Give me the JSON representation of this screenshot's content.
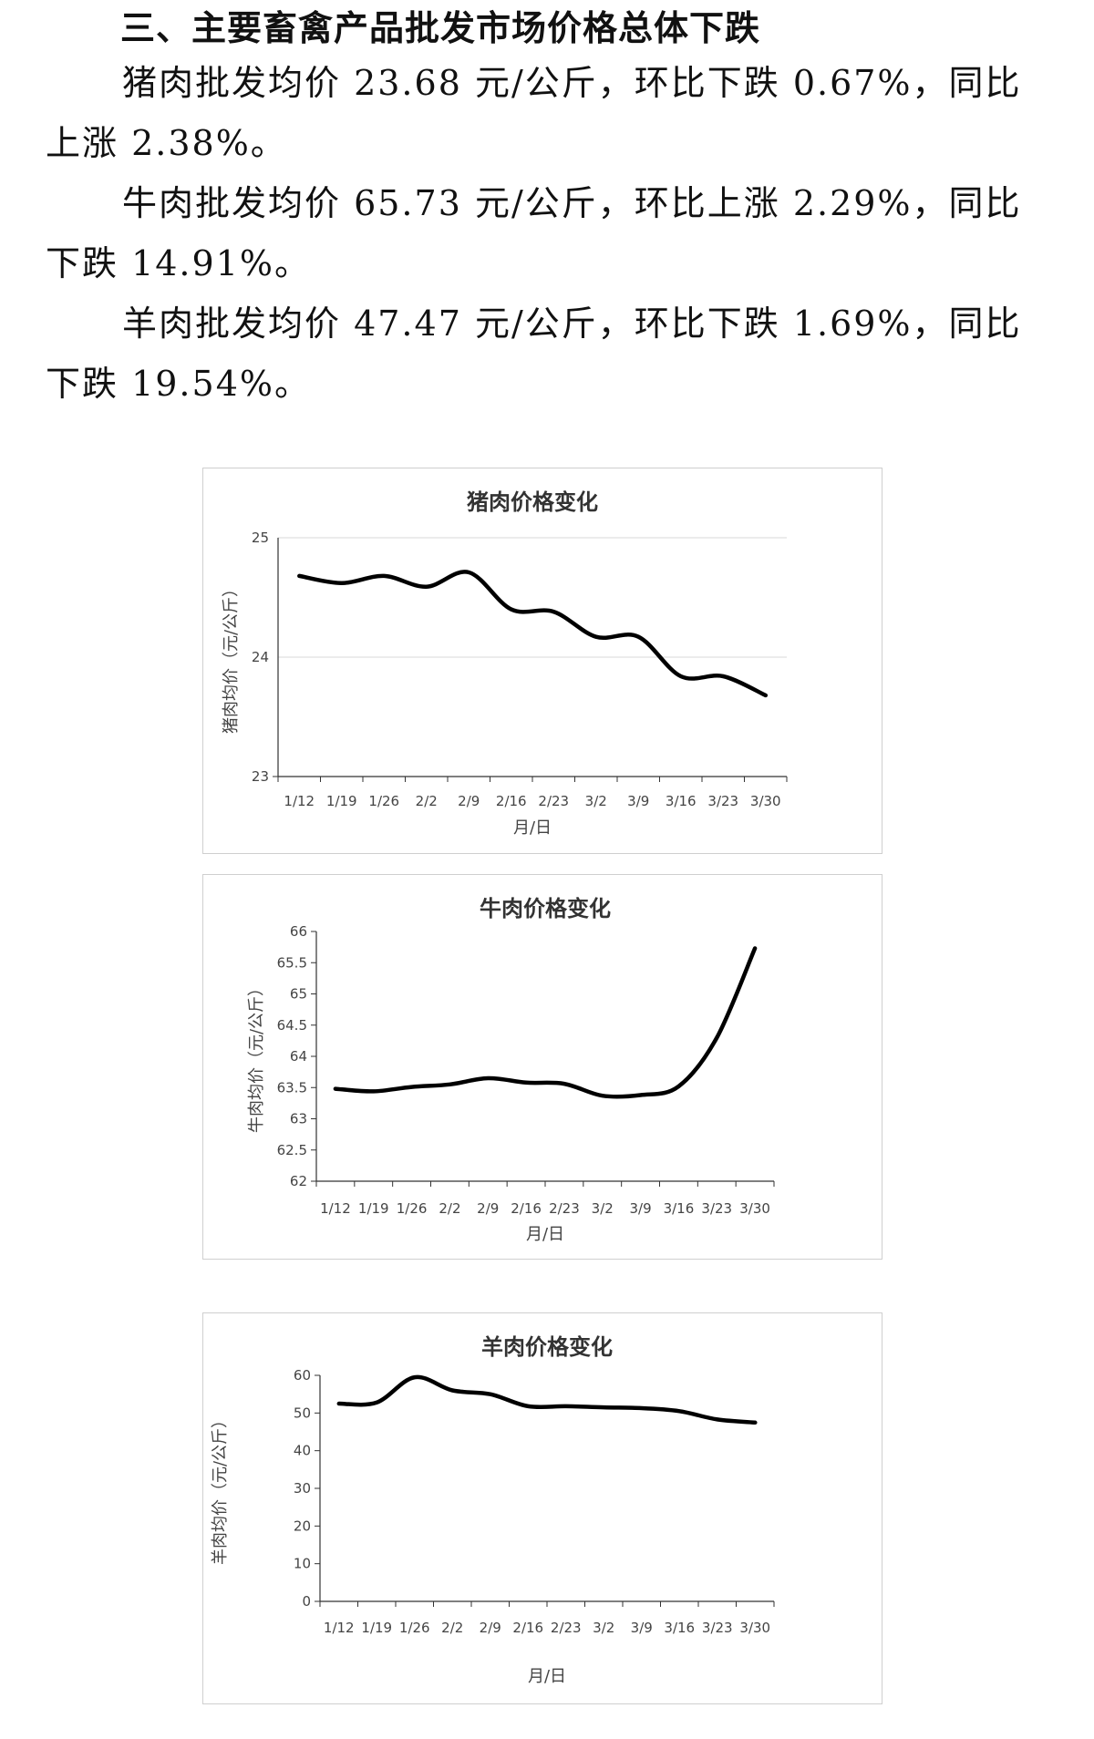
{
  "heading": "三、主要畜禽产品批发市场价格总体下跌",
  "paragraphs": [
    "猪肉批发均价 23.68 元/公斤，环比下跌 0.67%，同比上涨 2.38%。",
    "牛肉批发均价 65.73 元/公斤，环比上涨 2.29%，同比下跌 14.91%。",
    "羊肉批发均价 47.47 元/公斤，环比下跌 1.69%，同比下跌 19.54%。"
  ],
  "chart_data": [
    {
      "type": "line",
      "title": "猪肉价格变化",
      "xlabel": "月/日",
      "ylabel": "猪肉均价（元/公斤）",
      "categories": [
        "1/12",
        "1/19",
        "1/26",
        "2/2",
        "2/9",
        "2/16",
        "2/23",
        "3/2",
        "3/9",
        "3/16",
        "3/23",
        "3/30"
      ],
      "values": [
        24.68,
        24.62,
        24.68,
        24.59,
        24.71,
        24.4,
        24.38,
        24.17,
        24.17,
        23.84,
        23.84,
        23.68
      ],
      "ylim": [
        23,
        25
      ],
      "yticks": [
        23,
        24,
        25
      ],
      "grid": true,
      "color": "#000000"
    },
    {
      "type": "line",
      "title": "牛肉价格变化",
      "xlabel": "月/日",
      "ylabel": "牛肉均价（元/公斤）",
      "categories": [
        "1/12",
        "1/19",
        "1/26",
        "2/2",
        "2/9",
        "2/16",
        "2/23",
        "3/2",
        "3/9",
        "3/16",
        "3/23",
        "3/30"
      ],
      "values": [
        63.48,
        63.44,
        63.51,
        63.55,
        63.65,
        63.58,
        63.56,
        63.37,
        63.38,
        63.52,
        64.3,
        65.73
      ],
      "ylim": [
        62,
        66
      ],
      "yticks": [
        62,
        62.5,
        63,
        63.5,
        64,
        64.5,
        65,
        65.5,
        66
      ],
      "grid": false,
      "color": "#000000"
    },
    {
      "type": "line",
      "title": "羊肉价格变化",
      "xlabel": "月/日",
      "ylabel": "羊肉均价（元/公斤）",
      "categories": [
        "1/12",
        "1/19",
        "1/26",
        "2/2",
        "2/9",
        "2/16",
        "2/23",
        "3/2",
        "3/9",
        "3/16",
        "3/23",
        "3/30"
      ],
      "values": [
        52.5,
        52.8,
        59.5,
        56,
        55,
        51.8,
        51.8,
        51.5,
        51.3,
        50.5,
        48.3,
        47.47
      ],
      "ylim": [
        0,
        60
      ],
      "yticks": [
        0,
        10,
        20,
        30,
        40,
        50,
        60
      ],
      "grid": false,
      "color": "#000000"
    }
  ]
}
